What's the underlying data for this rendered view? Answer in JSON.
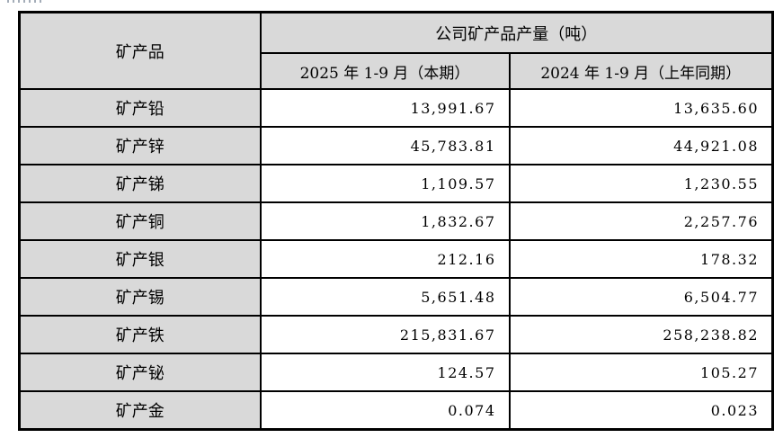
{
  "table": {
    "corner_header": "矿产品",
    "group_header": "公司矿产品产量（吨）",
    "columns": [
      "2025 年 1-9 月（本期）",
      "2024 年 1-9 月（上年同期）"
    ],
    "rows": [
      {
        "product": "矿产铅",
        "current": "13,991.67",
        "prior": "13,635.60"
      },
      {
        "product": "矿产锌",
        "current": "45,783.81",
        "prior": "44,921.08"
      },
      {
        "product": "矿产锑",
        "current": "1,109.57",
        "prior": "1,230.55"
      },
      {
        "product": "矿产铜",
        "current": "1,832.67",
        "prior": "2,257.76"
      },
      {
        "product": "矿产银",
        "current": "212.16",
        "prior": "178.32"
      },
      {
        "product": "矿产锡",
        "current": "5,651.48",
        "prior": "6,504.77"
      },
      {
        "product": "矿产铁",
        "current": "215,831.67",
        "prior": "258,238.82"
      },
      {
        "product": "矿产铋",
        "current": "124.57",
        "prior": "105.27"
      },
      {
        "product": "矿产金",
        "current": "0.074",
        "prior": "0.023"
      }
    ],
    "colors": {
      "header_fill": "#d9d9d9",
      "data_fill": "#ffffff",
      "border": "#000000",
      "text": "#000000"
    }
  },
  "chart_data": {
    "type": "table",
    "title": "公司矿产品产量（吨）",
    "categories": [
      "矿产铅",
      "矿产锌",
      "矿产锑",
      "矿产铜",
      "矿产银",
      "矿产锡",
      "矿产铁",
      "矿产铋",
      "矿产金"
    ],
    "series": [
      {
        "name": "2025 年 1-9 月（本期）",
        "values": [
          13991.67,
          45783.81,
          1109.57,
          1832.67,
          212.16,
          5651.48,
          215831.67,
          124.57,
          0.074
        ]
      },
      {
        "name": "2024 年 1-9 月（上年同期）",
        "values": [
          13635.6,
          44921.08,
          1230.55,
          2257.76,
          178.32,
          6504.77,
          258238.82,
          105.27,
          0.023
        ]
      }
    ]
  }
}
